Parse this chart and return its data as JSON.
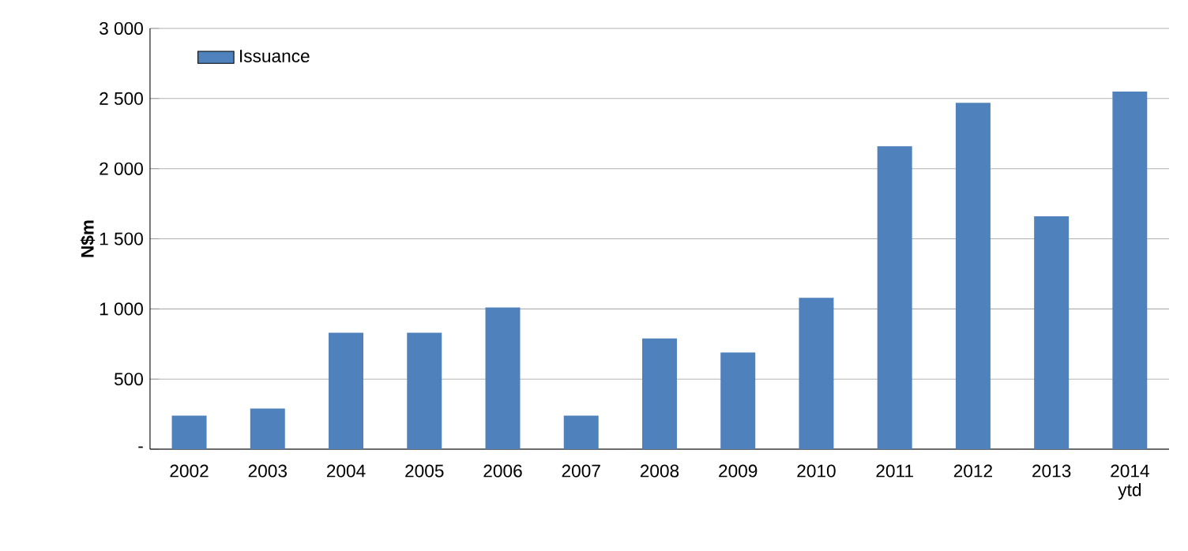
{
  "chart_data": {
    "type": "bar",
    "ylabel": "N$m",
    "categories": [
      "2002",
      "2003",
      "2004",
      "2005",
      "2006",
      "2007",
      "2008",
      "2009",
      "2010",
      "2011",
      "2012",
      "2013",
      "2014 ytd"
    ],
    "series": [
      {
        "name": "Issuance",
        "color": "#4f81bd",
        "values": [
          240,
          290,
          830,
          830,
          1010,
          240,
          790,
          690,
          1080,
          2160,
          2470,
          1660,
          2550
        ]
      }
    ],
    "ylim": [
      0,
      3000
    ],
    "yticks": [
      {
        "value": 0,
        "label": "-"
      },
      500,
      {
        "value": 1000,
        "label": "1 000"
      },
      {
        "value": 1500,
        "label": "1 500"
      },
      {
        "value": 2000,
        "label": "2 000"
      },
      {
        "value": 2500,
        "label": "2 500"
      },
      {
        "value": 3000,
        "label": "3 000"
      }
    ],
    "grid": "y",
    "legend": "top left"
  }
}
